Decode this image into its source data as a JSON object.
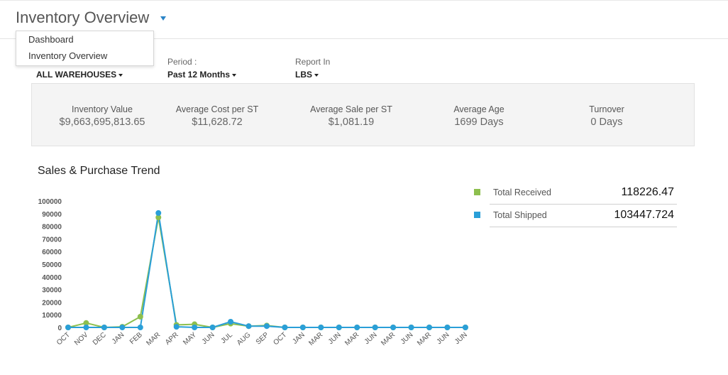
{
  "header": {
    "title": "Inventory Overview",
    "menu": [
      {
        "label": "Dashboard"
      },
      {
        "label": "Inventory Overview"
      }
    ]
  },
  "filters": {
    "warehouse": {
      "value": "ALL WAREHOUSES"
    },
    "period": {
      "label": "Period :",
      "value": "Past 12 Months"
    },
    "report": {
      "label": "Report In",
      "value": "LBS"
    }
  },
  "kpis": [
    {
      "label": "Inventory Value",
      "value": "$9,663,695,813.65"
    },
    {
      "label": "Average Cost per ST",
      "value": "$11,628.72"
    },
    {
      "label": "Average Sale per ST",
      "value": "$1,081.19"
    },
    {
      "label": "Average Age",
      "value": "1699 Days"
    },
    {
      "label": "Turnover",
      "value": "0 Days"
    }
  ],
  "section": {
    "title": "Sales & Purchase Trend"
  },
  "legend": [
    {
      "name": "Total Received",
      "value": "118226.47",
      "color": "#8dbf4e"
    },
    {
      "name": "Total Shipped",
      "value": "103447.724",
      "color": "#2a9fd8"
    }
  ],
  "chart_data": {
    "type": "line",
    "categories": [
      "OCT",
      "NOV",
      "DEC",
      "JAN",
      "FEB",
      "MAR",
      "APR",
      "MAY",
      "JUN",
      "JUL",
      "AUG",
      "SEP",
      "OCT",
      "JAN",
      "MAR",
      "JUN",
      "MAR",
      "JUN",
      "MAR",
      "JUN",
      "MAR",
      "JUN",
      "JUN"
    ],
    "yticks": [
      0,
      10000,
      20000,
      30000,
      40000,
      50000,
      60000,
      70000,
      80000,
      90000,
      100000
    ],
    "ylim": [
      0,
      100000
    ],
    "series": [
      {
        "name": "Total Received",
        "color": "#8dbf4e",
        "values": [
          0,
          3500,
          0,
          500,
          8500,
          87000,
          2000,
          2500,
          0,
          3000,
          1000,
          1500,
          0,
          0,
          0,
          0,
          0,
          0,
          0,
          0,
          0,
          0,
          0
        ]
      },
      {
        "name": "Total Shipped",
        "color": "#2a9fd8",
        "values": [
          0,
          0,
          0,
          0,
          0,
          90500,
          500,
          0,
          0,
          4500,
          1000,
          1000,
          0,
          0,
          0,
          0,
          0,
          0,
          0,
          0,
          0,
          0,
          0
        ]
      }
    ]
  }
}
